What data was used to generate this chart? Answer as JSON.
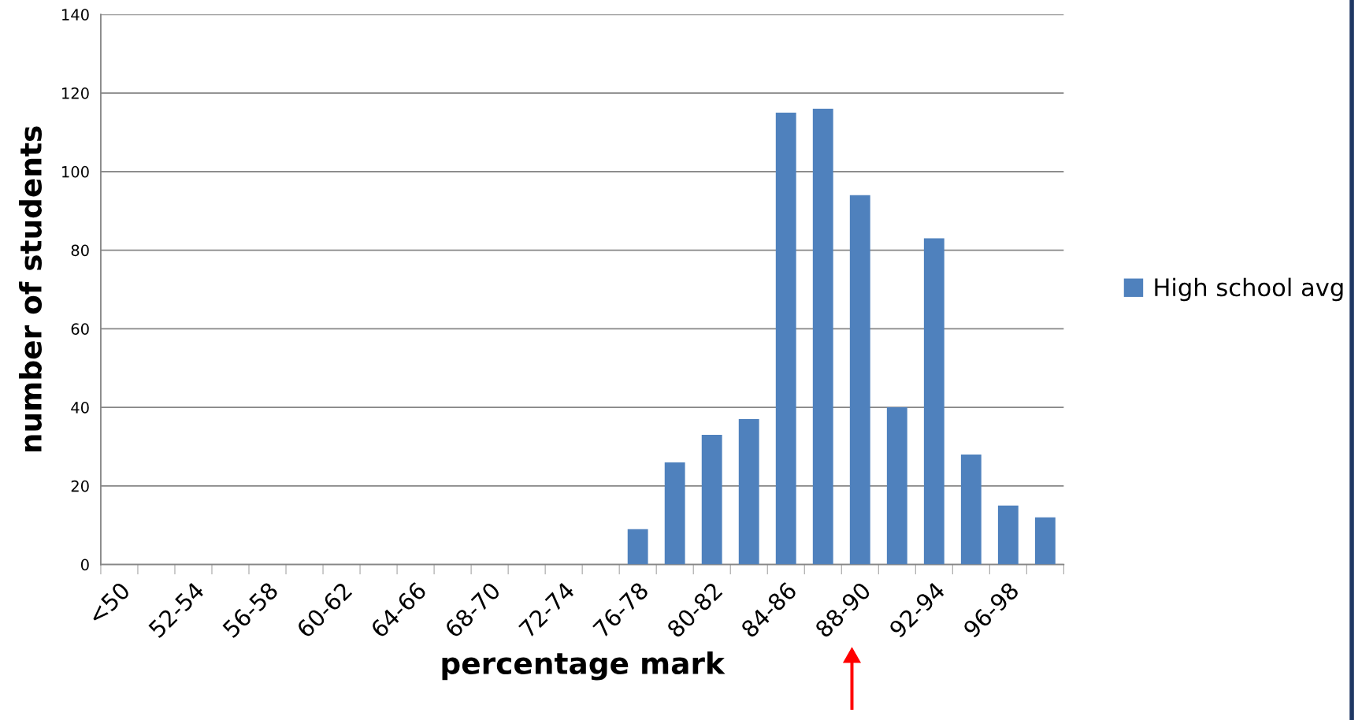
{
  "chart_data": {
    "type": "bar",
    "categories": [
      "<50",
      null,
      "52-54",
      null,
      "56-58",
      null,
      "60-62",
      null,
      "64-66",
      null,
      "68-70",
      null,
      "72-74",
      null,
      "76-78",
      null,
      "80-82",
      null,
      "84-86",
      null,
      "88-90",
      null,
      "92-94",
      null,
      "96-98",
      null
    ],
    "series": [
      {
        "name": "High school avg",
        "color": "#4f81bd",
        "values": [
          0,
          0,
          0,
          0,
          0,
          0,
          0,
          0,
          0,
          0,
          0,
          0,
          0,
          0,
          9,
          26,
          33,
          37,
          115,
          116,
          94,
          40,
          83,
          28,
          15,
          12
        ]
      }
    ],
    "xlabel": "percentage mark",
    "ylabel": "number of students",
    "ylim": [
      0,
      140
    ],
    "yticks": [
      0,
      20,
      40,
      60,
      80,
      100,
      120,
      140
    ],
    "grid": "y",
    "legend": "right"
  }
}
